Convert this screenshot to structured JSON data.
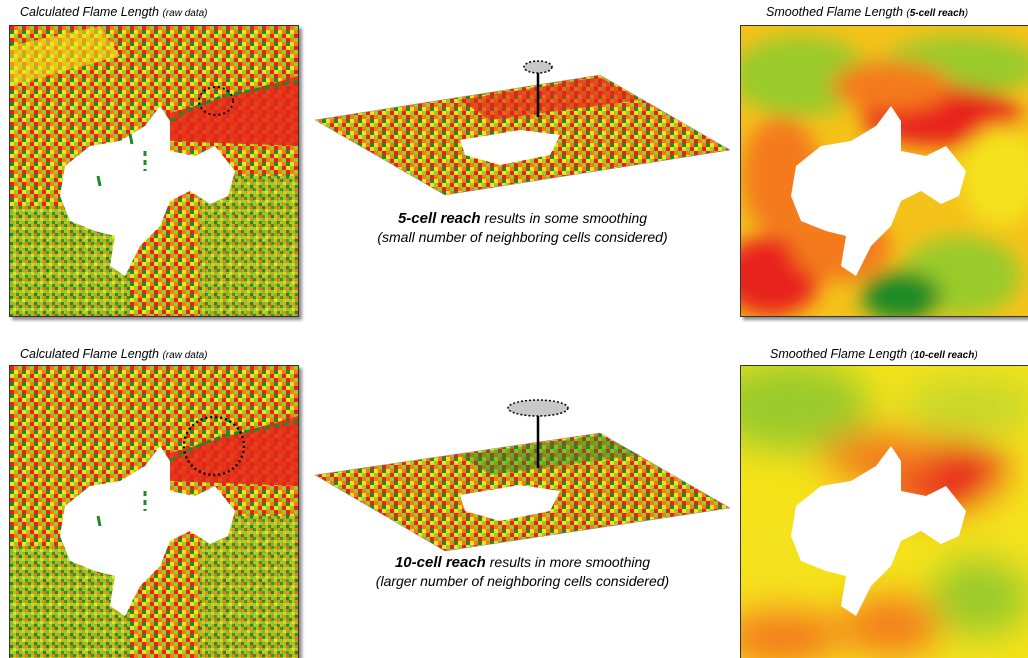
{
  "top": {
    "left_title": "Calculated Flame Length",
    "left_sub": "(raw data)",
    "right_title": "Smoothed Flame Length",
    "right_sub_open": "(",
    "right_sub_bold": "5-cell reach",
    "right_sub_close": ")",
    "caption_bold": "5-cell reach",
    "caption_rest": " results in some smoothing",
    "caption_line2": "(small number of neighboring cells considered)"
  },
  "bottom": {
    "left_title": "Calculated Flame Length",
    "left_sub": "(raw data)",
    "right_title": "Smoothed Flame Length",
    "right_sub_open": "(",
    "right_sub_bold": "10-cell reach",
    "right_sub_close": ")",
    "caption_bold": "10-cell reach",
    "caption_rest": " results in more smoothing",
    "caption_line2": "(larger number of neighboring cells considered)"
  },
  "colors": {
    "red": "#e8221a",
    "orange": "#f47a1a",
    "yellow": "#f5e21a",
    "light_green": "#9acb2a",
    "dark_green": "#1e8a28",
    "white_area": "#ffffff",
    "marker": "#c8c8c8"
  }
}
